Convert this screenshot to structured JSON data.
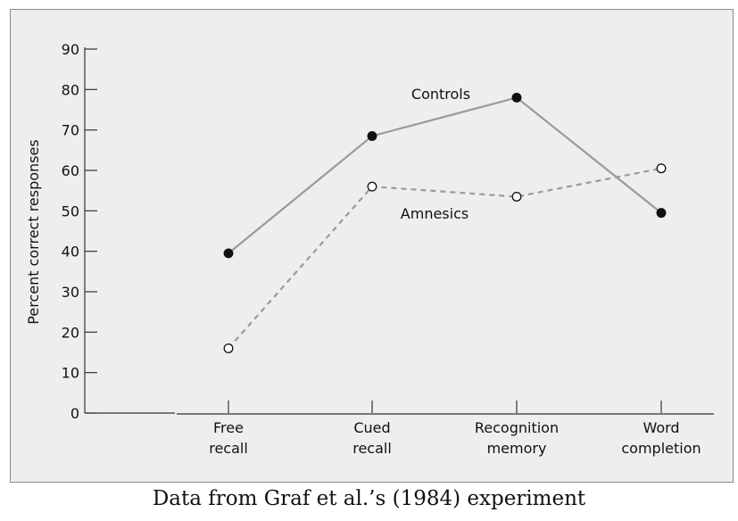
{
  "caption": "Data from Graf et al.’s (1984) experiment",
  "colors": {
    "frame_background": "#eeeeee",
    "axis": "#333333",
    "controls_line": "#9a9a9a",
    "amnesics_line": "#9a9a9a",
    "controls_marker": "#111111",
    "amnesics_marker_fill": "#ffffff",
    "amnesics_marker_stroke": "#111111"
  },
  "chart_data": {
    "type": "line",
    "title": "",
    "xlabel": "",
    "ylabel": "Percent correct responses",
    "ylim": [
      0,
      90
    ],
    "yticks": [
      "0",
      "10",
      "20",
      "30",
      "40",
      "50",
      "60",
      "70",
      "80",
      "90"
    ],
    "categories": [
      [
        "Free",
        "recall"
      ],
      [
        "Cued",
        "recall"
      ],
      [
        "Recognition",
        "memory"
      ],
      [
        "Word",
        "completion"
      ]
    ],
    "grid": false,
    "legend": "inline labels",
    "series": [
      {
        "name": "Controls",
        "values": [
          39.5,
          68.5,
          78,
          49.5
        ],
        "line_style": "solid",
        "marker": "filled-circle"
      },
      {
        "name": "Amnesics",
        "values": [
          16,
          56,
          53.5,
          60.5
        ],
        "line_style": "dashed",
        "marker": "open-circle"
      }
    ]
  }
}
